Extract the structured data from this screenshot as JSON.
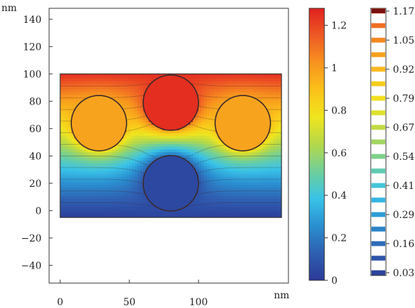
{
  "chart_data": {
    "type": "heatmap",
    "title": "",
    "x_unit": "nm",
    "y_unit": "nm",
    "x_ticks": [
      0,
      50,
      100
    ],
    "y_ticks": [
      -40,
      -20,
      0,
      20,
      40,
      60,
      80,
      100,
      120,
      140
    ],
    "xlim": [
      -8,
      165
    ],
    "ylim": [
      -53,
      148
    ],
    "domain": {
      "x": [
        0,
        160
      ],
      "y": [
        -5,
        100
      ]
    },
    "circles": [
      {
        "cx": 28,
        "cy": 64,
        "r": 20,
        "value": 0.98
      },
      {
        "cx": 80,
        "cy": 79,
        "r": 20,
        "value": 1.25
      },
      {
        "cx": 132,
        "cy": 64,
        "r": 20,
        "value": 0.98
      },
      {
        "cx": 80,
        "cy": 20,
        "r": 20,
        "value": 0.05
      }
    ],
    "colorbar": {
      "min": 0,
      "max": 1.28,
      "ticks": [
        0,
        0.2,
        0.4,
        0.6,
        0.8,
        1,
        1.2
      ],
      "tick_labels": [
        "0",
        "0.2",
        "0.4",
        "0.6",
        "0.8",
        "1",
        "1.2"
      ]
    },
    "contour_legend": {
      "levels": [
        "0.03",
        "0.16",
        "0.29",
        "0.41",
        "0.54",
        "0.67",
        "0.79",
        "0.92",
        "1.05",
        "1.17"
      ],
      "values": [
        0.03,
        0.16,
        0.29,
        0.41,
        0.54,
        0.67,
        0.79,
        0.92,
        1.05,
        1.17
      ]
    }
  },
  "colors": {
    "colormap": [
      "#2b3a98",
      "#2f5fb0",
      "#2a8fd0",
      "#39c3e8",
      "#6fcf9a",
      "#b4d84a",
      "#f0e51e",
      "#fbc21a",
      "#f7931e",
      "#ee5a24",
      "#e0201f"
    ]
  }
}
